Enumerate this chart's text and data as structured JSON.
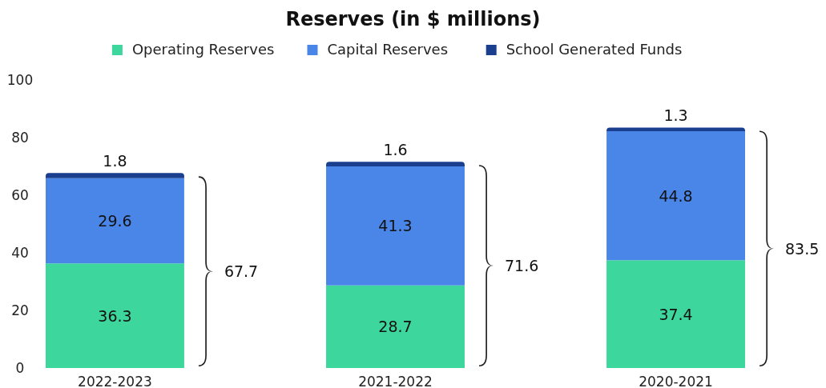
{
  "chart_data": {
    "type": "bar",
    "title": "Reserves (in $ millions)",
    "categories": [
      "2022-2023",
      "2021-2022",
      "2020-2021"
    ],
    "stacked": true,
    "series": [
      {
        "name": "Operating Reserves",
        "color": "#3dd69c",
        "values": [
          36.3,
          28.7,
          37.4
        ]
      },
      {
        "name": "Capital Reserves",
        "color": "#4a86e8",
        "values": [
          29.6,
          41.3,
          44.8
        ]
      },
      {
        "name": "School Generated Funds",
        "color": "#1a3f8f",
        "values": [
          1.8,
          1.6,
          1.3
        ]
      }
    ],
    "ylim": [
      0,
      100
    ],
    "yticks": [
      0,
      20,
      40,
      60,
      80,
      100
    ],
    "grid": false,
    "legend": "top",
    "data_labels": true,
    "totals": [
      "67.7",
      "71.6",
      "83.5"
    ]
  }
}
